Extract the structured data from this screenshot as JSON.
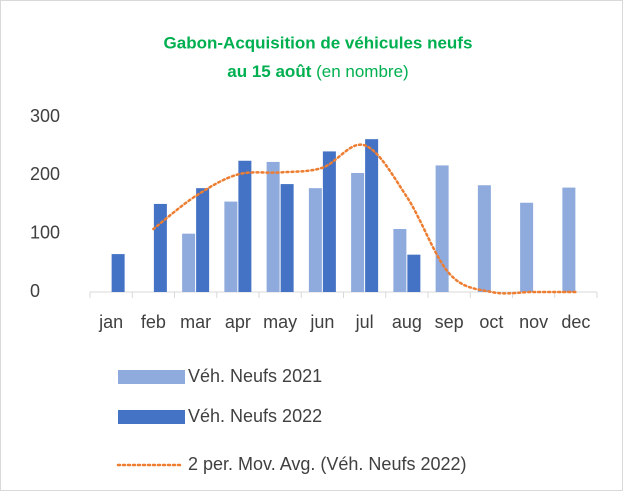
{
  "chart_data": {
    "type": "bar",
    "title": [
      "Gabon-Acquisition de véhicules neufs",
      "au 15 août"
    ],
    "subtitle": "(en nombre)",
    "categories": [
      "jan",
      "feb",
      "mar",
      "apr",
      "may",
      "jun",
      "jul",
      "aug",
      "sep",
      "oct",
      "nov",
      "dec"
    ],
    "series": [
      {
        "name": "Véh. Neufs 2021",
        "color": "#8faadc",
        "values": [
          null,
          null,
          100,
          155,
          223,
          178,
          204,
          108,
          217,
          183,
          153,
          179
        ]
      },
      {
        "name": "Véh. Neufs 2022",
        "color": "#4472c4",
        "values": [
          65,
          151,
          178,
          225,
          185,
          241,
          262,
          64,
          0,
          0,
          0,
          0
        ]
      },
      {
        "name": "2 per. Mov. Avg. (Véh. Neufs 2022)",
        "type": "line",
        "color": "#ed7d31",
        "values": [
          null,
          108,
          164.5,
          201.5,
          205,
          213,
          251.5,
          163,
          32,
          0,
          0,
          0
        ]
      }
    ],
    "ylim": [
      0,
      300
    ],
    "yticks": [
      0,
      100,
      200,
      300
    ],
    "grid": false
  }
}
